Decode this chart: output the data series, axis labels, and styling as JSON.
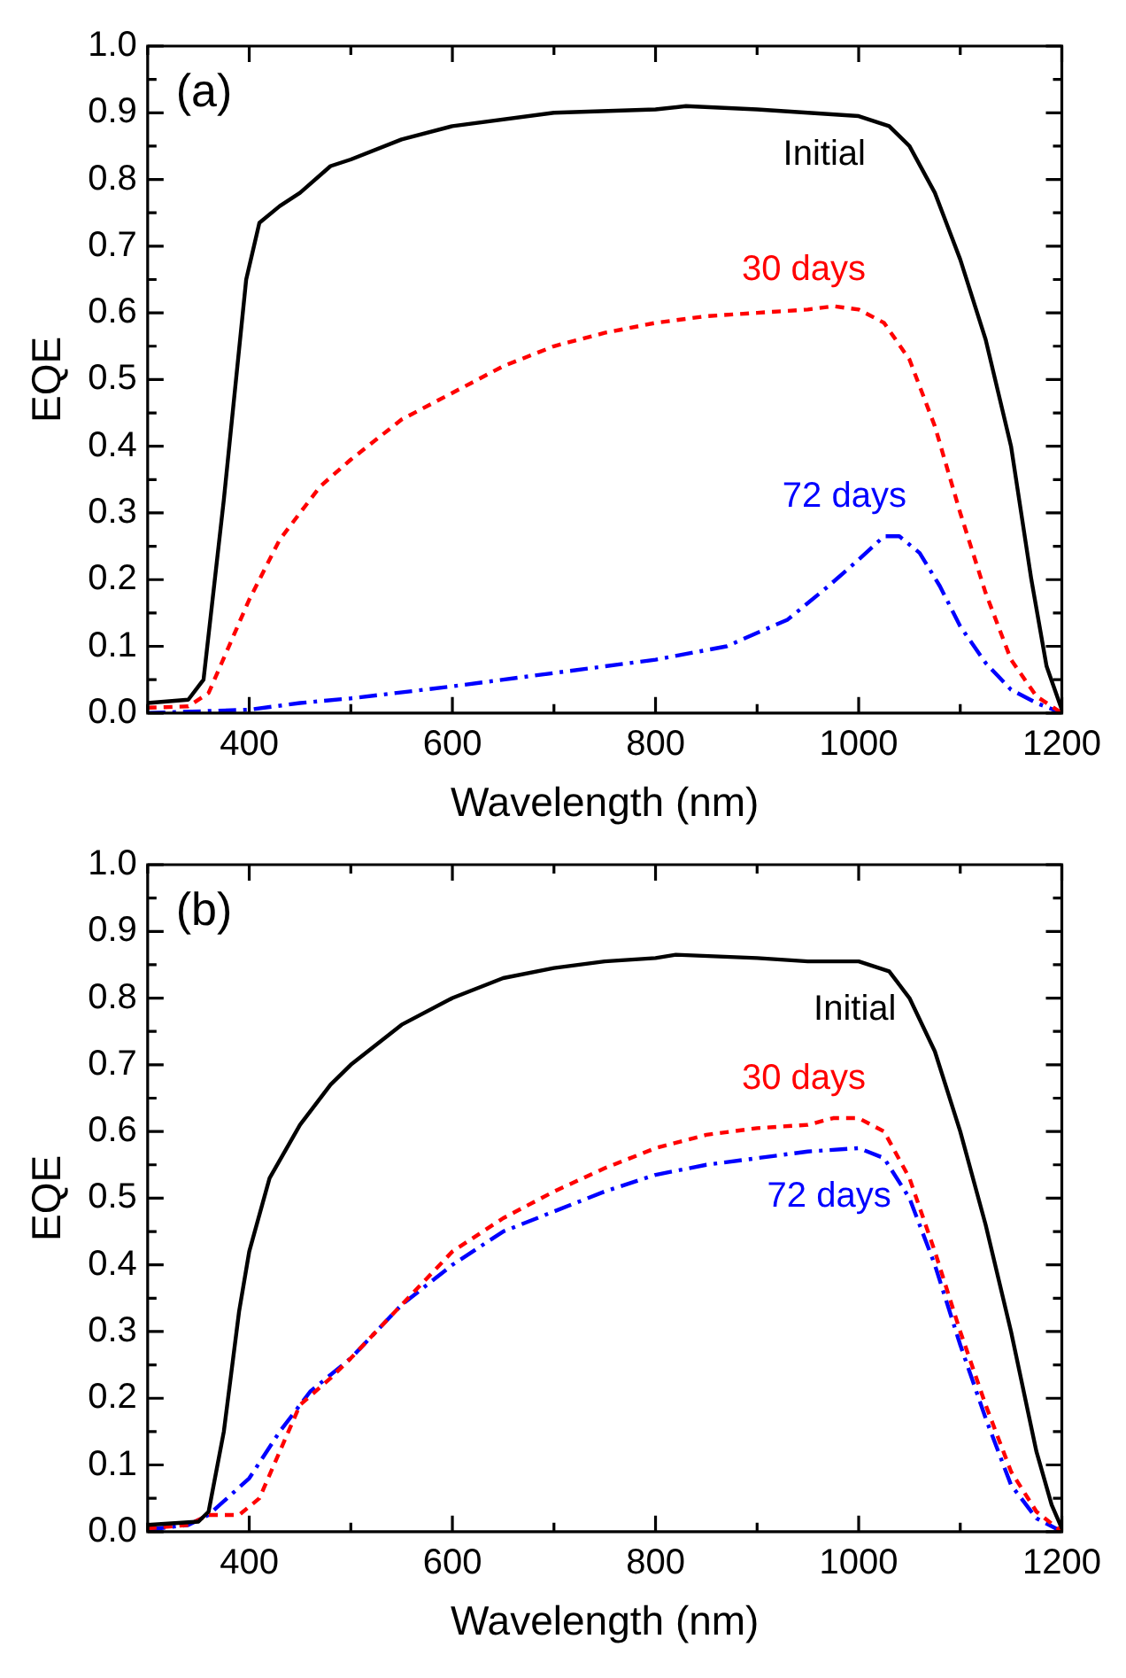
{
  "chart_data": [
    {
      "type": "line",
      "xlabel": "Wavelength (nm)",
      "ylabel": "EQE",
      "xlim": [
        300,
        1200
      ],
      "ylim": [
        0,
        1
      ],
      "xticks": [
        {
          "value": 300,
          "label": null
        },
        400,
        {
          "value": 500,
          "label": null
        },
        600,
        {
          "value": 700,
          "label": null
        },
        800,
        {
          "value": 900,
          "label": null
        },
        1000,
        {
          "value": 1100,
          "label": null
        },
        1200
      ],
      "yticks": [
        {
          "value": 0,
          "label": "0.0"
        },
        {
          "value": 0.05,
          "label": null
        },
        0.1,
        {
          "value": 0.15,
          "label": null
        },
        0.2,
        {
          "value": 0.25,
          "label": null
        },
        0.3,
        {
          "value": 0.35,
          "label": null
        },
        0.4,
        {
          "value": 0.45,
          "label": null
        },
        0.5,
        {
          "value": 0.55,
          "label": null
        },
        0.6,
        {
          "value": 0.65,
          "label": null
        },
        0.7,
        {
          "value": 0.75,
          "label": null
        },
        0.8,
        {
          "value": 0.85,
          "label": null
        },
        0.9,
        {
          "value": 0.95,
          "label": null
        },
        {
          "value": 1,
          "label": "1.0"
        }
      ],
      "grid": false,
      "legend": false,
      "marker": "none",
      "annotations": [
        "(a)"
      ],
      "series": [
        {
          "name": "Initial",
          "color": "#000000",
          "line_style": "solid",
          "x": [
            300,
            340,
            355,
            375,
            397,
            410,
            430,
            450,
            480,
            500,
            550,
            600,
            700,
            800,
            830,
            900,
            950,
            1000,
            1030,
            1050,
            1075,
            1100,
            1125,
            1150,
            1170,
            1185,
            1200
          ],
          "values": [
            0.015,
            0.02,
            0.05,
            0.32,
            0.65,
            0.735,
            0.76,
            0.78,
            0.82,
            0.83,
            0.86,
            0.88,
            0.9,
            0.905,
            0.91,
            0.905,
            0.9,
            0.895,
            0.88,
            0.85,
            0.78,
            0.68,
            0.56,
            0.4,
            0.2,
            0.07,
            0.005
          ]
        },
        {
          "name": "30 days",
          "color": "#ff0000",
          "line_style": "dashed",
          "x": [
            300,
            340,
            360,
            380,
            400,
            430,
            470,
            500,
            550,
            600,
            650,
            700,
            750,
            800,
            850,
            900,
            950,
            975,
            1000,
            1025,
            1050,
            1075,
            1100,
            1125,
            1150,
            1175,
            1200
          ],
          "values": [
            0.008,
            0.01,
            0.03,
            0.1,
            0.17,
            0.26,
            0.34,
            0.38,
            0.44,
            0.48,
            0.52,
            0.55,
            0.57,
            0.585,
            0.595,
            0.6,
            0.605,
            0.61,
            0.605,
            0.585,
            0.53,
            0.43,
            0.3,
            0.18,
            0.08,
            0.025,
            0
          ]
        },
        {
          "name": "72 days",
          "color": "#0000ff",
          "line_style": "dashdot",
          "x": [
            300,
            400,
            450,
            500,
            600,
            700,
            800,
            870,
            930,
            970,
            1000,
            1025,
            1040,
            1060,
            1080,
            1100,
            1125,
            1150,
            1175,
            1200
          ],
          "values": [
            0,
            0.005,
            0.015,
            0.022,
            0.04,
            0.06,
            0.08,
            0.1,
            0.14,
            0.19,
            0.23,
            0.265,
            0.265,
            0.24,
            0.19,
            0.13,
            0.075,
            0.035,
            0.015,
            0
          ]
        }
      ]
    },
    {
      "type": "line",
      "xlabel": "Wavelength (nm)",
      "ylabel": "EQE",
      "xlim": [
        300,
        1200
      ],
      "ylim": [
        0,
        1
      ],
      "xticks": [
        {
          "value": 300,
          "label": null
        },
        400,
        {
          "value": 500,
          "label": null
        },
        600,
        {
          "value": 700,
          "label": null
        },
        800,
        {
          "value": 900,
          "label": null
        },
        1000,
        {
          "value": 1100,
          "label": null
        },
        1200
      ],
      "yticks": [
        {
          "value": 0,
          "label": "0.0"
        },
        {
          "value": 0.05,
          "label": null
        },
        0.1,
        {
          "value": 0.15,
          "label": null
        },
        0.2,
        {
          "value": 0.25,
          "label": null
        },
        0.3,
        {
          "value": 0.35,
          "label": null
        },
        0.4,
        {
          "value": 0.45,
          "label": null
        },
        0.5,
        {
          "value": 0.55,
          "label": null
        },
        0.6,
        {
          "value": 0.65,
          "label": null
        },
        0.7,
        {
          "value": 0.75,
          "label": null
        },
        0.8,
        {
          "value": 0.85,
          "label": null
        },
        0.9,
        {
          "value": 0.95,
          "label": null
        },
        {
          "value": 1,
          "label": "1.0"
        }
      ],
      "grid": false,
      "legend": false,
      "marker": "none",
      "annotations": [
        "(b)"
      ],
      "series": [
        {
          "name": "Initial",
          "color": "#000000",
          "line_style": "solid",
          "x": [
            300,
            350,
            360,
            375,
            390,
            400,
            420,
            450,
            480,
            500,
            550,
            600,
            650,
            700,
            750,
            800,
            820,
            900,
            950,
            1000,
            1030,
            1050,
            1075,
            1100,
            1125,
            1150,
            1175,
            1190,
            1200
          ],
          "values": [
            0.01,
            0.015,
            0.03,
            0.15,
            0.33,
            0.42,
            0.53,
            0.61,
            0.67,
            0.7,
            0.76,
            0.8,
            0.83,
            0.845,
            0.855,
            0.86,
            0.865,
            0.86,
            0.855,
            0.855,
            0.84,
            0.8,
            0.72,
            0.6,
            0.46,
            0.3,
            0.12,
            0.04,
            0.005
          ]
        },
        {
          "name": "30 days",
          "color": "#ff0000",
          "line_style": "dashed",
          "x": [
            300,
            340,
            360,
            390,
            410,
            430,
            450,
            480,
            500,
            550,
            600,
            650,
            700,
            750,
            800,
            850,
            900,
            950,
            975,
            1000,
            1025,
            1050,
            1075,
            1100,
            1125,
            1150,
            1175,
            1200
          ],
          "values": [
            0.005,
            0.01,
            0.025,
            0.025,
            0.05,
            0.12,
            0.19,
            0.23,
            0.26,
            0.34,
            0.42,
            0.47,
            0.51,
            0.545,
            0.575,
            0.595,
            0.605,
            0.61,
            0.62,
            0.62,
            0.6,
            0.53,
            0.42,
            0.3,
            0.19,
            0.09,
            0.03,
            0
          ]
        },
        {
          "name": "72 days",
          "color": "#0000ff",
          "line_style": "dashdot",
          "x": [
            300,
            340,
            360,
            400,
            430,
            460,
            500,
            550,
            600,
            650,
            700,
            750,
            800,
            850,
            900,
            950,
            1000,
            1025,
            1050,
            1075,
            1100,
            1125,
            1150,
            1175,
            1200
          ],
          "values": [
            0.003,
            0.01,
            0.025,
            0.08,
            0.15,
            0.21,
            0.26,
            0.34,
            0.4,
            0.45,
            0.48,
            0.51,
            0.535,
            0.55,
            0.56,
            0.57,
            0.575,
            0.56,
            0.5,
            0.4,
            0.28,
            0.17,
            0.07,
            0.02,
            0
          ]
        }
      ]
    }
  ]
}
